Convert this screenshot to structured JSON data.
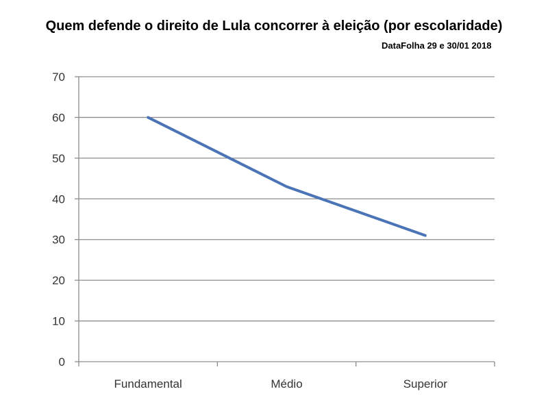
{
  "chart_data": {
    "type": "line",
    "title": "Quem defende o direito de Lula concorrer à eleição (por escolaridade)",
    "subtitle": "DataFolha 29 e 30/01 2018",
    "xlabel": "",
    "ylabel": "",
    "categories": [
      "Fundamental",
      "Médio",
      "Superior"
    ],
    "series": [
      {
        "values": [
          60,
          43,
          31
        ]
      }
    ],
    "ylim": [
      0,
      70
    ],
    "yticks": [
      0,
      10,
      20,
      30,
      40,
      50,
      60,
      70
    ],
    "grid": true,
    "legend": "none",
    "colors": {
      "line": "#4a74b6",
      "grid": "#8c8c8c",
      "axis": "#8c8c8c"
    }
  }
}
